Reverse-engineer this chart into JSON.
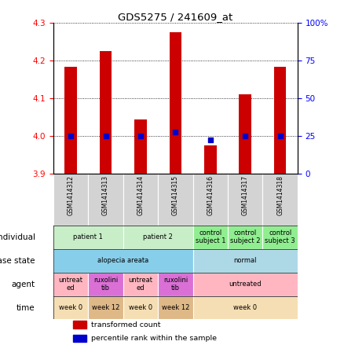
{
  "title": "GDS5275 / 241609_at",
  "samples": [
    "GSM1414312",
    "GSM1414313",
    "GSM1414314",
    "GSM1414315",
    "GSM1414316",
    "GSM1414317",
    "GSM1414318"
  ],
  "bar_values": [
    4.185,
    4.225,
    4.045,
    4.275,
    3.975,
    4.11,
    4.185
  ],
  "blue_dot_values": [
    4.0,
    4.0,
    4.0,
    4.01,
    3.99,
    4.0,
    4.0
  ],
  "ylim": [
    3.9,
    4.3
  ],
  "yticks_left": [
    3.9,
    4.0,
    4.1,
    4.2,
    4.3
  ],
  "yticks_right": [
    0,
    25,
    50,
    75,
    100
  ],
  "right_ytick_labels": [
    "0",
    "25",
    "50",
    "75",
    "100%"
  ],
  "bar_color": "#cc0000",
  "dot_color": "#0000cc",
  "bar_width": 0.35,
  "annotation_rows": [
    {
      "label": "individual",
      "cells": [
        {
          "text": "patient 1",
          "span": 2,
          "color": "#c8eec8"
        },
        {
          "text": "patient 2",
          "span": 2,
          "color": "#c8eec8"
        },
        {
          "text": "control\nsubject 1",
          "span": 1,
          "color": "#90ee90"
        },
        {
          "text": "control\nsubject 2",
          "span": 1,
          "color": "#90ee90"
        },
        {
          "text": "control\nsubject 3",
          "span": 1,
          "color": "#90ee90"
        }
      ]
    },
    {
      "label": "disease state",
      "cells": [
        {
          "text": "alopecia areata",
          "span": 4,
          "color": "#87ceeb"
        },
        {
          "text": "normal",
          "span": 3,
          "color": "#add8e6"
        }
      ]
    },
    {
      "label": "agent",
      "cells": [
        {
          "text": "untreat\ned",
          "span": 1,
          "color": "#ffb6c1"
        },
        {
          "text": "ruxolini\ntib",
          "span": 1,
          "color": "#da70d6"
        },
        {
          "text": "untreat\ned",
          "span": 1,
          "color": "#ffb6c1"
        },
        {
          "text": "ruxolini\ntib",
          "span": 1,
          "color": "#da70d6"
        },
        {
          "text": "untreated",
          "span": 3,
          "color": "#ffb6c1"
        }
      ]
    },
    {
      "label": "time",
      "cells": [
        {
          "text": "week 0",
          "span": 1,
          "color": "#f5deb3"
        },
        {
          "text": "week 12",
          "span": 1,
          "color": "#deb887"
        },
        {
          "text": "week 0",
          "span": 1,
          "color": "#f5deb3"
        },
        {
          "text": "week 12",
          "span": 1,
          "color": "#deb887"
        },
        {
          "text": "week 0",
          "span": 3,
          "color": "#f5deb3"
        }
      ]
    }
  ],
  "legend_items": [
    {
      "color": "#cc0000",
      "label": "transformed count"
    },
    {
      "color": "#0000cc",
      "label": "percentile rank within the sample"
    }
  ],
  "xtick_bg_color": "#d3d3d3",
  "chart_bg_color": "#ffffff"
}
